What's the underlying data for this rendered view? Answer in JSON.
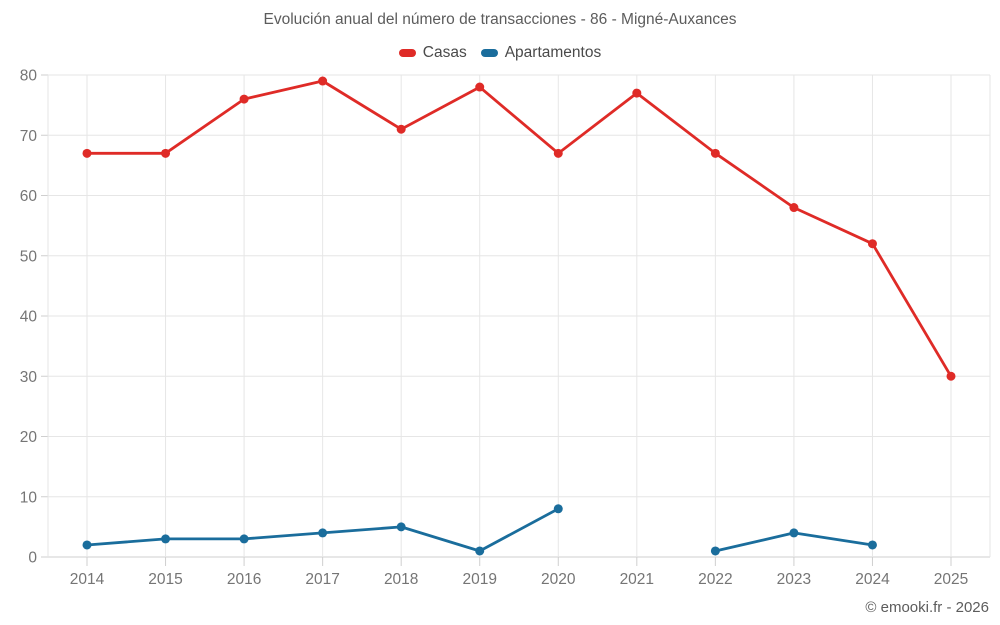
{
  "header": {
    "title": "Evolución anual del número de transacciones - 86 - Migné-Auxances"
  },
  "legend": {
    "items": [
      {
        "label": "Casas",
        "color": "#df2b27"
      },
      {
        "label": "Apartamentos",
        "color": "#1a6d9c"
      }
    ]
  },
  "footer": {
    "credit": "© emooki.fr - 2026"
  },
  "colors": {
    "grid": "#e6e6e6",
    "axis_line": "#cfcfcf",
    "tick_label": "#757575"
  },
  "chart_data": {
    "type": "line",
    "title": "Evolución anual del número de transacciones - 86 - Migné-Auxances",
    "categories": [
      "2014",
      "2015",
      "2016",
      "2017",
      "2018",
      "2019",
      "2020",
      "2021",
      "2022",
      "2023",
      "2024",
      "2025"
    ],
    "series": [
      {
        "name": "Casas",
        "color": "#df2b27",
        "values": [
          67,
          67,
          76,
          79,
          71,
          78,
          67,
          77,
          67,
          58,
          52,
          30
        ]
      },
      {
        "name": "Apartamentos",
        "color": "#1a6d9c",
        "values": [
          2,
          3,
          3,
          4,
          5,
          1,
          8,
          null,
          1,
          4,
          2,
          null
        ]
      }
    ],
    "xlabel": "",
    "ylabel": "",
    "ylim": [
      0,
      80
    ],
    "yticks": [
      0,
      10,
      20,
      30,
      40,
      50,
      60,
      70,
      80
    ],
    "grid": true,
    "legend_position": "top"
  }
}
